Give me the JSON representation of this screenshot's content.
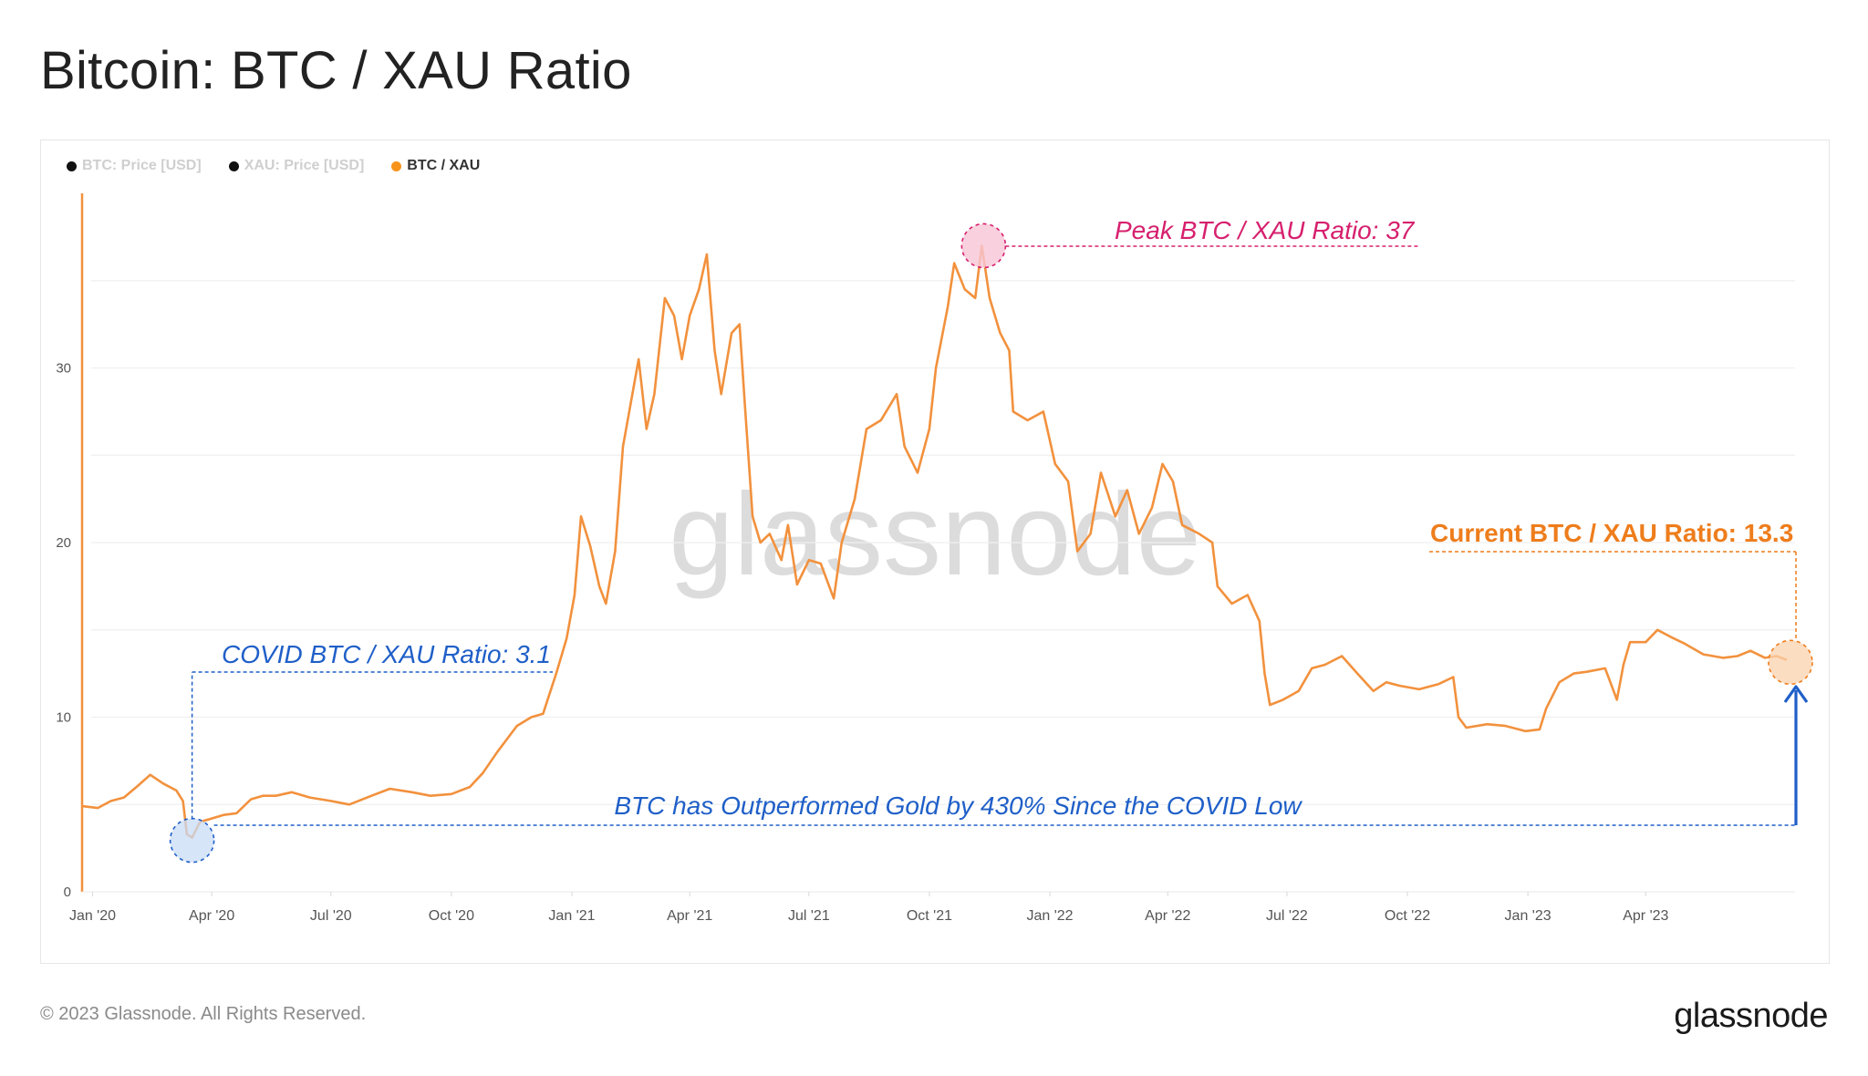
{
  "title": "Bitcoin: BTC / XAU Ratio",
  "legend": [
    {
      "label": "BTC: Price [USD]",
      "color": "#111111",
      "active": false
    },
    {
      "label": "XAU: Price [USD]",
      "color": "#111111",
      "active": false
    },
    {
      "label": "BTC / XAU",
      "color": "#f7931a",
      "active": true
    }
  ],
  "watermark": "glassnode",
  "footer": {
    "copyright": "© 2023 Glassnode. All Rights Reserved.",
    "brand": "glassnode"
  },
  "colors": {
    "series": "#f2913d",
    "covid": "#1f5fc8",
    "peak": "#d6206e",
    "current": "#ee7d1c"
  },
  "chart_data": {
    "type": "line",
    "title": "Bitcoin: BTC / XAU Ratio",
    "xlabel": "",
    "ylabel": "",
    "ylim": [
      0,
      40
    ],
    "xlim": [
      "2019-12-24",
      "2023-07-24"
    ],
    "yticks": [
      0,
      10,
      20,
      30
    ],
    "xticks": [
      {
        "date": "2020-01-01",
        "label": "Jan '20"
      },
      {
        "date": "2020-04-01",
        "label": "Apr '20"
      },
      {
        "date": "2020-07-01",
        "label": "Jul '20"
      },
      {
        "date": "2020-10-01",
        "label": "Oct '20"
      },
      {
        "date": "2021-01-01",
        "label": "Jan '21"
      },
      {
        "date": "2021-04-01",
        "label": "Apr '21"
      },
      {
        "date": "2021-07-01",
        "label": "Jul '21"
      },
      {
        "date": "2021-10-01",
        "label": "Oct '21"
      },
      {
        "date": "2022-01-01",
        "label": "Jan '22"
      },
      {
        "date": "2022-04-01",
        "label": "Apr '22"
      },
      {
        "date": "2022-07-01",
        "label": "Jul '22"
      },
      {
        "date": "2022-10-01",
        "label": "Oct '22"
      },
      {
        "date": "2023-01-01",
        "label": "Jan '23"
      },
      {
        "date": "2023-04-01",
        "label": "Apr '23"
      }
    ],
    "grid": true,
    "series": [
      {
        "name": "BTC / XAU",
        "points": [
          [
            "2019-12-25",
            4.9
          ],
          [
            "2020-01-05",
            4.8
          ],
          [
            "2020-01-15",
            5.2
          ],
          [
            "2020-01-25",
            5.4
          ],
          [
            "2020-02-05",
            6.1
          ],
          [
            "2020-02-14",
            6.7
          ],
          [
            "2020-02-24",
            6.2
          ],
          [
            "2020-03-05",
            5.8
          ],
          [
            "2020-03-10",
            5.2
          ],
          [
            "2020-03-13",
            3.3
          ],
          [
            "2020-03-17",
            3.1
          ],
          [
            "2020-03-23",
            4.0
          ],
          [
            "2020-04-01",
            4.2
          ],
          [
            "2020-04-10",
            4.4
          ],
          [
            "2020-04-20",
            4.5
          ],
          [
            "2020-05-01",
            5.3
          ],
          [
            "2020-05-10",
            5.5
          ],
          [
            "2020-05-20",
            5.5
          ],
          [
            "2020-06-01",
            5.7
          ],
          [
            "2020-06-15",
            5.4
          ],
          [
            "2020-07-01",
            5.2
          ],
          [
            "2020-07-15",
            5.0
          ],
          [
            "2020-08-01",
            5.5
          ],
          [
            "2020-08-15",
            5.9
          ],
          [
            "2020-09-01",
            5.7
          ],
          [
            "2020-09-15",
            5.5
          ],
          [
            "2020-10-01",
            5.6
          ],
          [
            "2020-10-15",
            6.0
          ],
          [
            "2020-10-25",
            6.8
          ],
          [
            "2020-11-05",
            8.0
          ],
          [
            "2020-11-20, ",
            9.5
          ],
          [
            "2020-12-01",
            10.0
          ],
          [
            "2020-12-10",
            10.2
          ],
          [
            "2020-12-20",
            12.5
          ],
          [
            "2020-12-28",
            14.5
          ],
          [
            "2021-01-03",
            17.0
          ],
          [
            "2021-01-08",
            21.5
          ],
          [
            "2021-01-15",
            19.8
          ],
          [
            "2021-01-22",
            17.5
          ],
          [
            "2021-01-27",
            16.5
          ],
          [
            "2021-02-03",
            19.5
          ],
          [
            "2021-02-09",
            25.5
          ],
          [
            "2021-02-21",
            30.5
          ],
          [
            "2021-02-27",
            26.5
          ],
          [
            "2021-03-05",
            28.5
          ],
          [
            "2021-03-13, ",
            34.0
          ],
          [
            "2021-03-20",
            33.0
          ],
          [
            "2021-03-26",
            30.5
          ],
          [
            "2021-04-01",
            33.0
          ],
          [
            "2021-04-08",
            34.5
          ],
          [
            "2021-04-14",
            36.5
          ],
          [
            "2021-04-20",
            31.0
          ],
          [
            "2021-04-25",
            28.5
          ],
          [
            "2021-05-03",
            32.0
          ],
          [
            "2021-05-09",
            32.5
          ],
          [
            "2021-05-13",
            28.0
          ],
          [
            "2021-05-19",
            21.5
          ],
          [
            "2021-05-25",
            20.0
          ],
          [
            "2021-06-01",
            20.5
          ],
          [
            "2021-06-10",
            19.0
          ],
          [
            "2021-06-15",
            21.0
          ],
          [
            "2021-06-22",
            17.6
          ],
          [
            "2021-07-01",
            19.0
          ],
          [
            "2021-07-10",
            18.8
          ],
          [
            "2021-07-20",
            16.8
          ],
          [
            "2021-07-26",
            20.0
          ],
          [
            "2021-08-05",
            22.5
          ],
          [
            "2021-08-14",
            26.5
          ],
          [
            "2021-08-25",
            27.0
          ],
          [
            "2021-09-06",
            28.5
          ],
          [
            "2021-09-12",
            25.5
          ],
          [
            "2021-09-22",
            24.0
          ],
          [
            "2021-10-01",
            26.5
          ],
          [
            "2021-10-06",
            30.0
          ],
          [
            "2021-10-15",
            33.5
          ],
          [
            "2021-10-20",
            36.0
          ],
          [
            "2021-10-28",
            34.5
          ],
          [
            "2021-11-05",
            34.0
          ],
          [
            "2021-11-10",
            37.0
          ],
          [
            "2021-11-16",
            34.0
          ],
          [
            "2021-11-24",
            32.0
          ],
          [
            "2021-12-01",
            31.0
          ],
          [
            "2021-12-04",
            27.5
          ],
          [
            "2021-12-15",
            27.0
          ],
          [
            "2021-12-27",
            27.5
          ],
          [
            "2022-01-05",
            24.5
          ],
          [
            "2022-01-15",
            23.5
          ],
          [
            "2022-01-22",
            19.5
          ],
          [
            "2022-02-01",
            20.5
          ],
          [
            "2022-02-09",
            24.0
          ],
          [
            "2022-02-20",
            21.5
          ],
          [
            "2022-03-01",
            23.0
          ],
          [
            "2022-03-10",
            20.5
          ],
          [
            "2022-03-20",
            22.0
          ],
          [
            "2022-03-28",
            24.5
          ],
          [
            "2022-04-05",
            23.5
          ],
          [
            "2022-04-12",
            21.0
          ],
          [
            "2022-04-25",
            20.5
          ],
          [
            "2022-05-05",
            20.0
          ],
          [
            "2022-05-09",
            17.5
          ],
          [
            "2022-05-20",
            16.5
          ],
          [
            "2022-06-01",
            17.0
          ],
          [
            "2022-06-10",
            15.5
          ],
          [
            "2022-06-14",
            12.5
          ],
          [
            "2022-06-18",
            10.7
          ],
          [
            "2022-06-28",
            11.0
          ],
          [
            "2022-07-10",
            11.5
          ],
          [
            "2022-07-20",
            12.8
          ],
          [
            "2022-07-30",
            13.0
          ],
          [
            "2022-08-12",
            13.5
          ],
          [
            "2022-08-25",
            12.4
          ],
          [
            "2022-09-05",
            11.5
          ],
          [
            "2022-09-15",
            12.0
          ],
          [
            "2022-09-25",
            11.8
          ],
          [
            "2022-10-10",
            11.6
          ],
          [
            "2022-10-25",
            11.9
          ],
          [
            "2022-11-05",
            12.3
          ],
          [
            "2022-11-09",
            10.0
          ],
          [
            "2022-11-15",
            9.4
          ],
          [
            "2022-12-01",
            9.6
          ],
          [
            "2022-12-15",
            9.5
          ],
          [
            "2022-12-30",
            9.2
          ],
          [
            "2023-01-10",
            9.3
          ],
          [
            "2023-01-15",
            10.5
          ],
          [
            "2023-01-25",
            12.0
          ],
          [
            "2023-02-05",
            12.5
          ],
          [
            "2023-02-15",
            12.6
          ],
          [
            "2023-03-01",
            12.8
          ],
          [
            "2023-03-10",
            11.0
          ],
          [
            "2023-03-15",
            13.0
          ],
          [
            "2023-03-20",
            14.3
          ],
          [
            "2023-04-01",
            14.3
          ],
          [
            "2023-04-10",
            15.0
          ],
          [
            "2023-04-20",
            14.6
          ],
          [
            "2023-05-01",
            14.2
          ],
          [
            "2023-05-15",
            13.6
          ],
          [
            "2023-05-30",
            13.4
          ],
          [
            "2023-06-10",
            13.5
          ],
          [
            "2023-06-20",
            13.8
          ],
          [
            "2023-07-01",
            13.4
          ],
          [
            "2023-07-10",
            13.5
          ],
          [
            "2023-07-17",
            13.3
          ]
        ]
      }
    ],
    "annotations": {
      "covid": {
        "label": "COVID BTC / XAU Ratio: 3.1",
        "date": "2020-03-17",
        "value": 3.1
      },
      "peak": {
        "label": "Peak BTC / XAU Ratio: 37",
        "date": "2021-11-10",
        "value": 37
      },
      "current": {
        "label": "Current BTC / XAU Ratio: 13.3",
        "date": "2023-07-17",
        "value": 13.3
      },
      "outperformance": {
        "label": "BTC has Outperformed Gold by 430% Since the COVID Low"
      }
    }
  }
}
